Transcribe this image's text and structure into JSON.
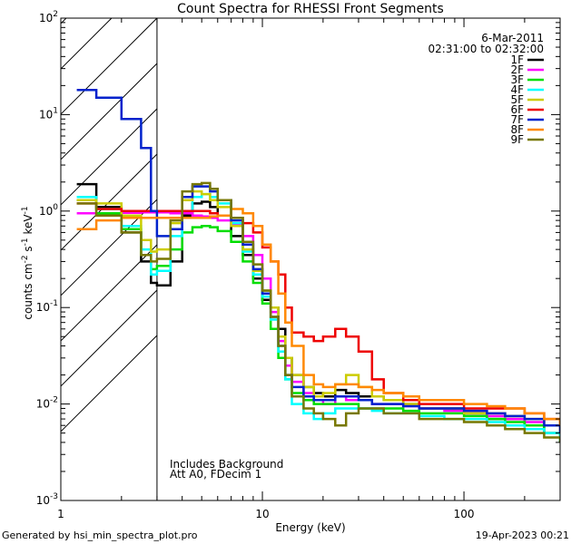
{
  "chart_data": {
    "type": "line",
    "title": "Count Spectra for RHESSI Front Segments",
    "xlabel": "Energy (keV)",
    "ylabel": "counts cm-2 s-1 keV-1",
    "x_scale": "log",
    "y_scale": "log",
    "xlim": [
      1,
      300
    ],
    "ylim": [
      0.001,
      100
    ],
    "x_ticks": [
      {
        "value": 1,
        "label": "1"
      },
      {
        "value": 10,
        "label": "10"
      },
      {
        "value": 100,
        "label": "100"
      }
    ],
    "y_ticks": [
      {
        "value": 0.001,
        "base": "10",
        "exp": "-3"
      },
      {
        "value": 0.01,
        "base": "10",
        "exp": "-2"
      },
      {
        "value": 0.1,
        "base": "10",
        "exp": "-1"
      },
      {
        "value": 1,
        "base": "10",
        "exp": "0"
      },
      {
        "value": 10,
        "base": "10",
        "exp": "1"
      },
      {
        "value": 100,
        "base": "10",
        "exp": "2"
      }
    ],
    "excluded_region": {
      "x_from": 1,
      "x_to": 3
    },
    "date": "6-Mar-2011",
    "time_range": "02:31:00 to 02:32:00",
    "annotations": [
      "Includes Background",
      "Att A0, FDecim 1"
    ],
    "footer_left": "Generated by hsi_min_spectra_plot.pro",
    "footer_right": "19-Apr-2023 00:21",
    "energies": [
      1.2,
      1.5,
      2.0,
      2.5,
      2.8,
      3.0,
      3.5,
      4.0,
      4.5,
      5.0,
      5.5,
      6.0,
      7.0,
      8.0,
      9.0,
      10.0,
      11.0,
      12.0,
      13.0,
      14.0,
      16.0,
      18.0,
      20.0,
      23.0,
      26.0,
      30.0,
      35.0,
      40.0,
      50.0,
      60.0,
      80.0,
      100.0,
      130.0,
      160.0,
      200.0,
      250.0,
      300.0
    ],
    "series": [
      {
        "name": "1F",
        "color": "#000000",
        "values": [
          1.9,
          1.1,
          0.6,
          0.3,
          0.18,
          0.17,
          0.3,
          0.9,
          1.2,
          1.25,
          1.1,
          0.9,
          0.55,
          0.35,
          0.2,
          0.12,
          0.1,
          0.06,
          0.03,
          0.02,
          0.015,
          0.013,
          0.012,
          0.014,
          0.013,
          0.012,
          0.012,
          0.011,
          0.01,
          0.009,
          0.009,
          0.008,
          0.007,
          0.007,
          0.006,
          0.005,
          0.004
        ]
      },
      {
        "name": "2F",
        "color": "#ff00ff",
        "values": [
          0.95,
          0.95,
          0.96,
          0.97,
          0.97,
          0.97,
          0.95,
          0.95,
          0.9,
          0.88,
          0.85,
          0.8,
          0.72,
          0.55,
          0.35,
          0.2,
          0.09,
          0.045,
          0.025,
          0.017,
          0.013,
          0.011,
          0.01,
          0.012,
          0.011,
          0.011,
          0.01,
          0.01,
          0.0095,
          0.009,
          0.0085,
          0.008,
          0.0075,
          0.007,
          0.0065,
          0.006,
          0.005
        ]
      },
      {
        "name": "3F",
        "color": "#00dd00",
        "values": [
          1.3,
          0.95,
          0.65,
          0.35,
          0.25,
          0.27,
          0.4,
          0.6,
          0.68,
          0.7,
          0.68,
          0.62,
          0.48,
          0.3,
          0.18,
          0.11,
          0.06,
          0.03,
          0.018,
          0.013,
          0.011,
          0.01,
          0.01,
          0.01,
          0.01,
          0.009,
          0.009,
          0.009,
          0.0085,
          0.008,
          0.008,
          0.0075,
          0.007,
          0.0065,
          0.006,
          0.005,
          0.004
        ]
      },
      {
        "name": "4F",
        "color": "#00ffff",
        "values": [
          1.4,
          1.05,
          0.7,
          0.4,
          0.22,
          0.24,
          0.55,
          1.0,
          1.4,
          1.5,
          1.4,
          1.2,
          0.75,
          0.38,
          0.22,
          0.13,
          0.075,
          0.035,
          0.018,
          0.01,
          0.008,
          0.007,
          0.008,
          0.009,
          0.009,
          0.009,
          0.0085,
          0.008,
          0.008,
          0.0075,
          0.007,
          0.007,
          0.0065,
          0.006,
          0.0055,
          0.005,
          0.004
        ]
      },
      {
        "name": "5F",
        "color": "#cccc00",
        "values": [
          1.3,
          1.2,
          0.9,
          0.5,
          0.38,
          0.4,
          0.75,
          1.3,
          1.6,
          1.5,
          1.3,
          1.1,
          0.7,
          0.4,
          0.24,
          0.15,
          0.1,
          0.05,
          0.03,
          0.02,
          0.015,
          0.012,
          0.013,
          0.016,
          0.02,
          0.015,
          0.012,
          0.011,
          0.01,
          0.009,
          0.009,
          0.008,
          0.008,
          0.0075,
          0.007,
          0.006,
          0.005
        ]
      },
      {
        "name": "6F",
        "color": "#ee0000",
        "values": [
          1.2,
          1.05,
          1.0,
          1.0,
          1.0,
          1.0,
          1.0,
          1.0,
          1.0,
          1.0,
          0.95,
          0.9,
          0.85,
          0.75,
          0.6,
          0.42,
          0.3,
          0.22,
          0.1,
          0.055,
          0.05,
          0.045,
          0.05,
          0.06,
          0.05,
          0.035,
          0.018,
          0.013,
          0.011,
          0.01,
          0.01,
          0.009,
          0.009,
          0.009,
          0.008,
          0.007,
          0.006
        ]
      },
      {
        "name": "7F",
        "color": "#0022cc",
        "values": [
          18.0,
          15.0,
          9.0,
          4.5,
          1.0,
          0.55,
          0.65,
          1.4,
          1.8,
          1.8,
          1.6,
          1.3,
          0.8,
          0.45,
          0.25,
          0.14,
          0.08,
          0.04,
          0.02,
          0.015,
          0.012,
          0.011,
          0.011,
          0.012,
          0.012,
          0.011,
          0.01,
          0.01,
          0.0095,
          0.009,
          0.009,
          0.0085,
          0.008,
          0.0075,
          0.007,
          0.006,
          0.005
        ]
      },
      {
        "name": "8F",
        "color": "#ff8800",
        "values": [
          0.65,
          0.8,
          0.85,
          0.85,
          0.85,
          0.85,
          0.85,
          0.85,
          0.85,
          0.85,
          0.88,
          0.9,
          1.05,
          0.95,
          0.7,
          0.45,
          0.3,
          0.14,
          0.07,
          0.04,
          0.02,
          0.016,
          0.015,
          0.016,
          0.016,
          0.015,
          0.014,
          0.013,
          0.012,
          0.011,
          0.011,
          0.01,
          0.0095,
          0.009,
          0.008,
          0.007,
          0.006
        ]
      },
      {
        "name": "9F",
        "color": "#777700",
        "values": [
          1.2,
          0.9,
          0.6,
          0.35,
          0.3,
          0.32,
          0.8,
          1.6,
          1.9,
          1.95,
          1.7,
          1.3,
          0.85,
          0.48,
          0.28,
          0.15,
          0.08,
          0.04,
          0.02,
          0.012,
          0.009,
          0.008,
          0.007,
          0.006,
          0.008,
          0.009,
          0.009,
          0.008,
          0.008,
          0.007,
          0.007,
          0.0065,
          0.006,
          0.0055,
          0.005,
          0.0045,
          0.004
        ]
      }
    ]
  }
}
